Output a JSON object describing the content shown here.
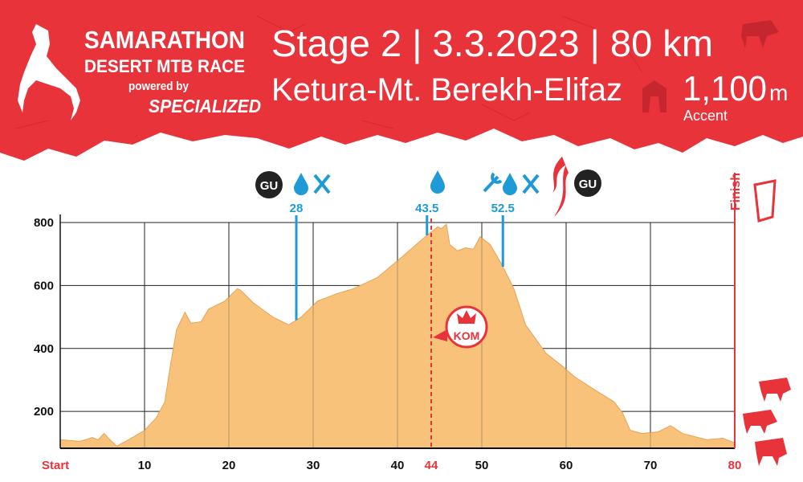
{
  "header": {
    "logo_title": "SAMARATHON",
    "logo_subtitle": "DESERT MTB RACE",
    "powered_by": "powered by",
    "sponsor": "SPECIALIZED",
    "title": "Stage 2 | 3.3.2023 | 80 km",
    "route": "Ketura-Mt. Berekh-Elifaz",
    "ascent_value": "1,100",
    "ascent_unit": "m",
    "ascent_label": "Accent"
  },
  "chart_data": {
    "type": "area",
    "x": [
      0,
      2.4,
      3.8,
      4.5,
      5.2,
      5.9,
      6.7,
      8.1,
      10,
      11.4,
      12.4,
      13,
      13.8,
      14.8,
      15.5,
      16.7,
      17.6,
      19.5,
      21,
      21.4,
      22.9,
      25.2,
      27.1,
      28.6,
      30.5,
      32.9,
      34.8,
      37.6,
      40.5,
      43.3,
      44.8,
      45.2,
      45.8,
      46.2,
      47.1,
      48.1,
      49,
      49.8,
      51,
      52.4,
      53.8,
      55.2,
      57.6,
      59.5,
      61,
      63.3,
      65.7,
      66.7,
      67.6,
      69,
      70.9,
      72.4,
      73.8,
      76.7,
      78.6,
      80
    ],
    "values": [
      110,
      105,
      117,
      110,
      130,
      110,
      90,
      110,
      140,
      180,
      230,
      335,
      460,
      515,
      480,
      485,
      525,
      550,
      590,
      585,
      545,
      500,
      475,
      500,
      550,
      575,
      590,
      625,
      690,
      755,
      787,
      780,
      795,
      730,
      710,
      720,
      715,
      755,
      730,
      665,
      590,
      475,
      385,
      345,
      310,
      270,
      230,
      195,
      140,
      130,
      135,
      155,
      130,
      110,
      115,
      100
    ],
    "color": "#f8c27b",
    "xlim": [
      0,
      80
    ],
    "ylim": [
      83,
      800
    ],
    "xticks": [
      {
        "value": 0,
        "label": "Start"
      },
      10,
      20,
      30,
      40,
      50,
      60,
      70,
      80
    ],
    "yticks": [
      200,
      400,
      600,
      800
    ],
    "grid": true,
    "aid_stations": [
      28,
      43.5,
      52.5
    ],
    "kom": {
      "x": 44,
      "label": "KOM"
    },
    "finish_label": "Finish"
  }
}
